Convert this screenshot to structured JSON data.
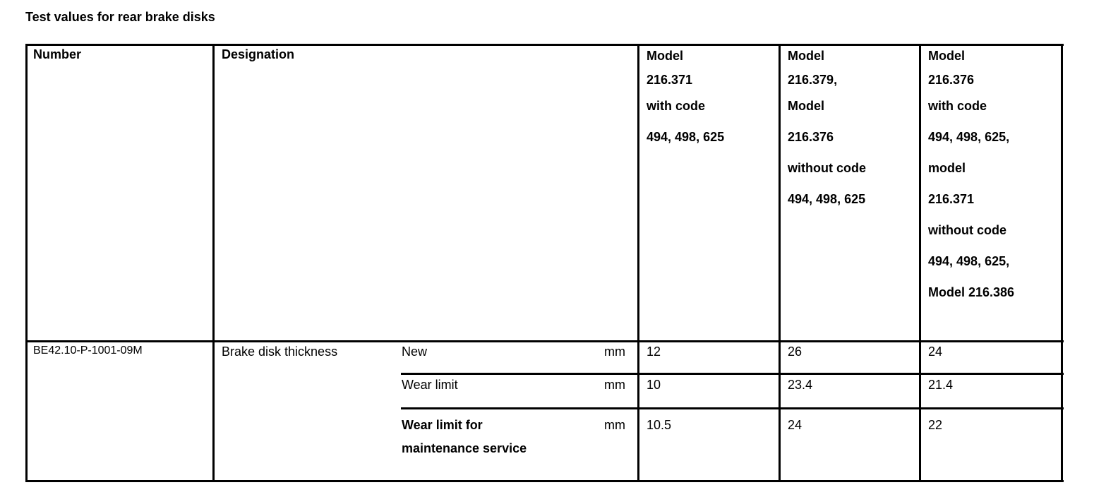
{
  "title": "Test values for rear brake disks",
  "table": {
    "headers": {
      "number": "Number",
      "designation": "Designation",
      "col1": [
        "Model",
        "216.371",
        "with code",
        "494, 498, 625"
      ],
      "col2": [
        "Model",
        "216.379,",
        "Model",
        "216.376",
        "without code",
        "494, 498, 625"
      ],
      "col3": [
        "Model",
        "216.376",
        "with code",
        "494, 498, 625,",
        "model",
        "216.371",
        "without code",
        "494, 498, 625,",
        "Model 216.386"
      ]
    },
    "row": {
      "number": "BE42.10-P-1001-09M",
      "designation": "Brake disk thickness",
      "subrows": [
        {
          "label": "New",
          "unit": "mm",
          "values": [
            "12",
            "26",
            "24"
          ]
        },
        {
          "label": "Wear limit",
          "unit": "mm",
          "values": [
            "10",
            "23.4",
            "21.4"
          ]
        },
        {
          "label_lines": [
            "Wear limit for",
            "maintenance service"
          ],
          "unit": "mm",
          "values": [
            "10.5",
            "24",
            "22"
          ]
        }
      ]
    }
  }
}
